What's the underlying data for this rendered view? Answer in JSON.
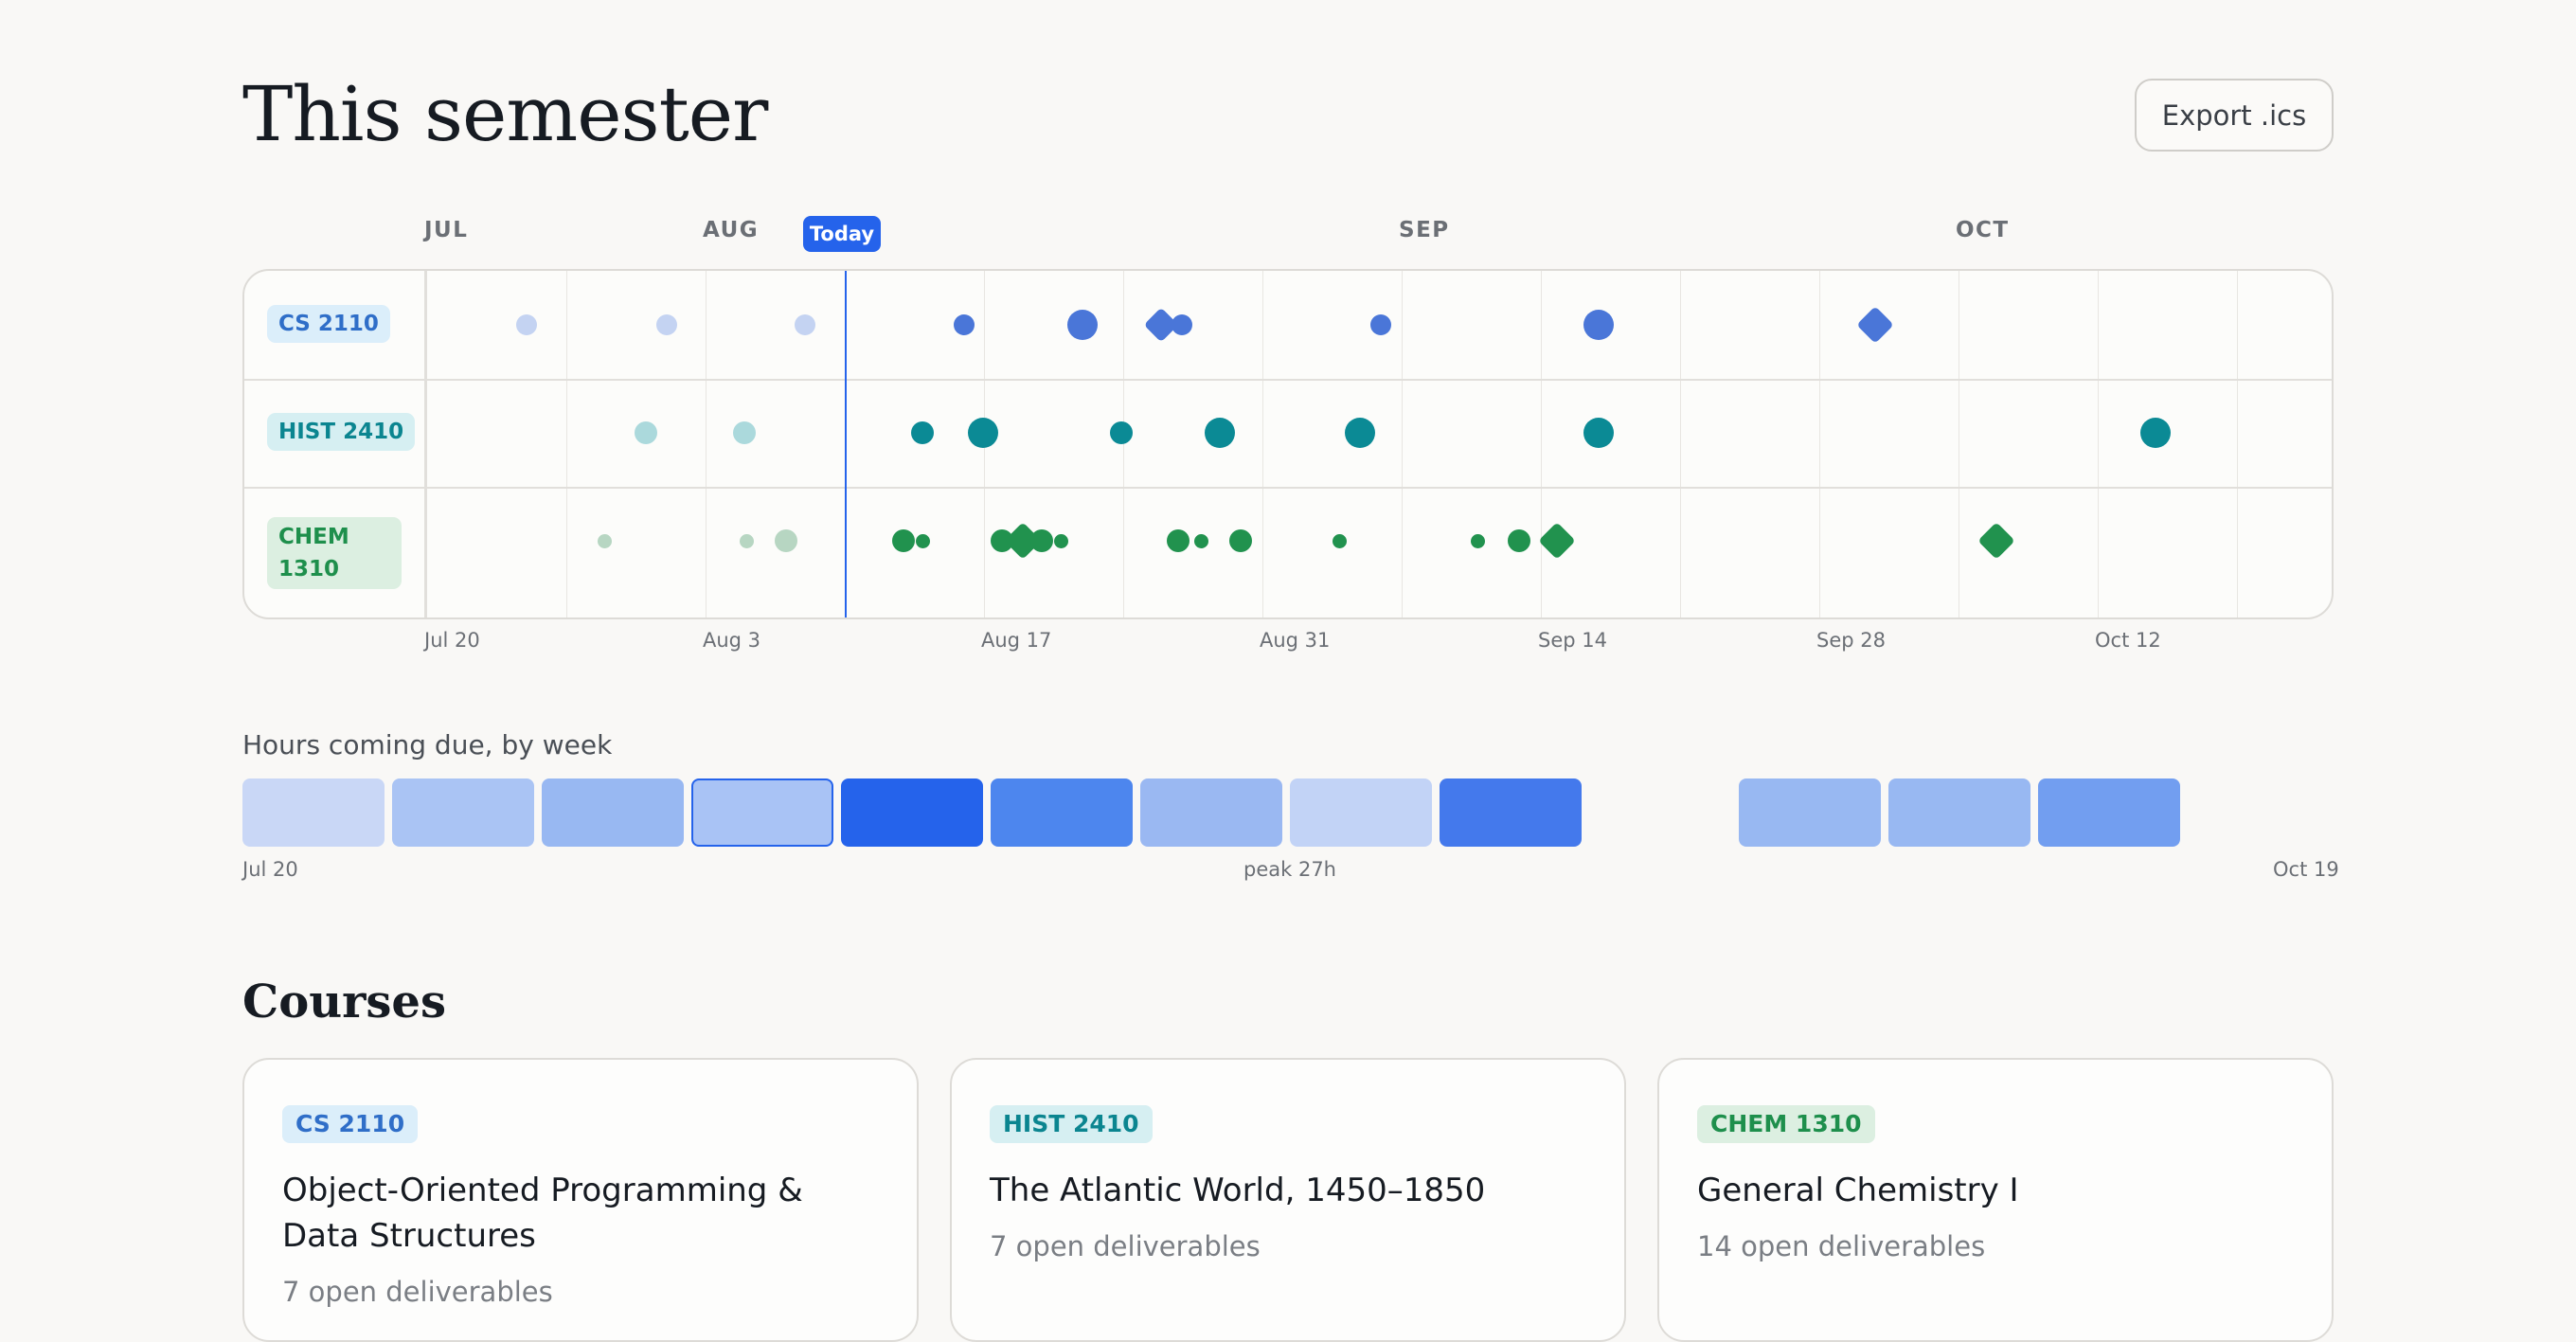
{
  "header": {
    "title": "This semester",
    "export_label": "Export .ics"
  },
  "timeline": {
    "months": [
      "JUL",
      "AUG",
      "SEP",
      "OCT"
    ],
    "today_label": "Today",
    "date_labels": [
      "Jul 20",
      "Aug 3",
      "Aug 17",
      "Aug 31",
      "Sep 14",
      "Sep 28",
      "Oct 12"
    ],
    "rows": [
      {
        "label": "CS 2110",
        "color": "#4a76d8"
      },
      {
        "label": "HIST 2410",
        "color": "#0b8a95"
      },
      {
        "label": "CHEM 1310",
        "color": "#21924e"
      }
    ]
  },
  "hours": {
    "title": "Hours coming due, by week",
    "start_label": "Jul 20",
    "peak_label": "peak 27h",
    "end_label": "Oct 19"
  },
  "courses": {
    "title": "Courses",
    "items": [
      {
        "code": "CS 2110",
        "name": "Object-Oriented Programming & Data Structures",
        "open": "7 open deliverables"
      },
      {
        "code": "HIST 2410",
        "name": "The Atlantic World, 1450–1850",
        "open": "7 open deliverables"
      },
      {
        "code": "CHEM 1310",
        "name": "General Chemistry I",
        "open": "14 open deliverables"
      }
    ]
  },
  "colors": {
    "accent": "#2563eb",
    "cs": "#4a76d8",
    "hist": "#0b8a95",
    "chem": "#21924e"
  }
}
